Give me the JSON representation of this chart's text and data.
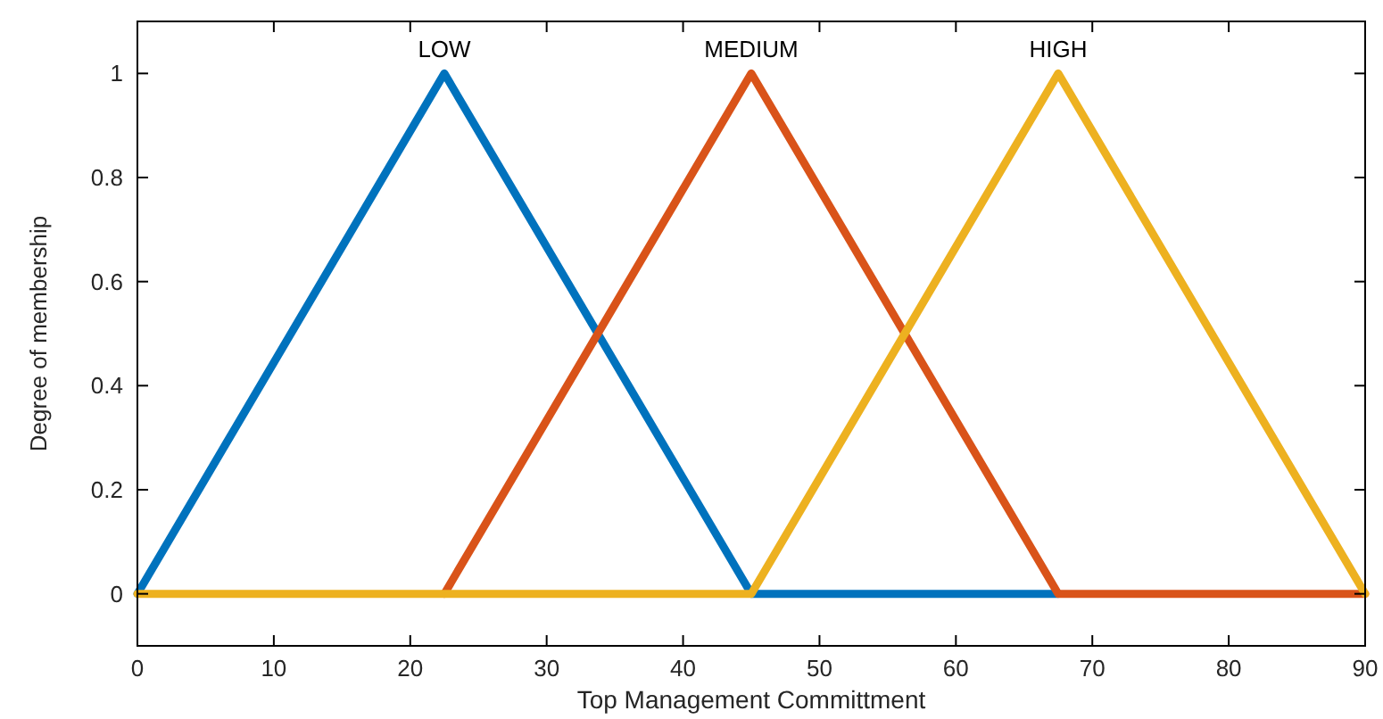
{
  "chart_data": {
    "type": "line",
    "xlabel": "Top Management Committment",
    "ylabel": "Degree of membership",
    "xlim": [
      0,
      90
    ],
    "xticks": [
      0,
      10,
      20,
      30,
      40,
      50,
      60,
      70,
      80,
      90
    ],
    "ylim": [
      -0.1,
      1.1
    ],
    "yticks": [
      0,
      0.2,
      0.4,
      0.6,
      0.8,
      1
    ],
    "grid": false,
    "marker": "none",
    "line_style": "solid",
    "series": [
      {
        "name": "LOW",
        "color": "#0072bd",
        "x": [
          0,
          22.5,
          45,
          67.5
        ],
        "values": [
          0,
          1,
          0,
          0
        ]
      },
      {
        "name": "MEDIUM",
        "color": "#d95319",
        "x": [
          22.5,
          45,
          67.5,
          90
        ],
        "values": [
          0,
          1,
          0,
          0
        ]
      },
      {
        "name": "HIGH",
        "color": "#edb120",
        "x": [
          0,
          45,
          67.5,
          90
        ],
        "values": [
          0,
          0,
          1,
          0
        ]
      }
    ]
  }
}
